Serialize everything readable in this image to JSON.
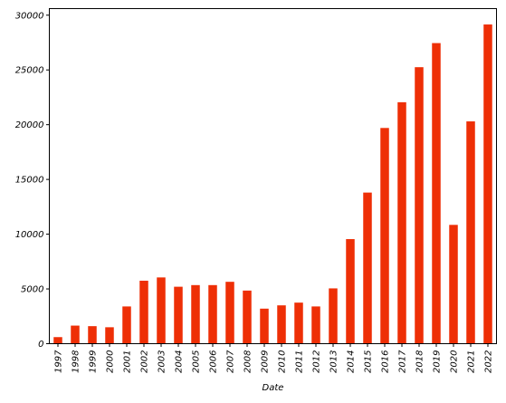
{
  "chart_data": {
    "type": "bar",
    "title": "",
    "xlabel": "Date",
    "ylabel": "",
    "ylim": [
      0,
      30600
    ],
    "yticks": [
      0,
      5000,
      10000,
      15000,
      20000,
      25000,
      30000
    ],
    "grid": false,
    "bar_color": "#ee2f06",
    "categories": [
      "1997",
      "1998",
      "1999",
      "2000",
      "2001",
      "2002",
      "2003",
      "2004",
      "2005",
      "2006",
      "2007",
      "2008",
      "2009",
      "2010",
      "2011",
      "2012",
      "2013",
      "2014",
      "2015",
      "2016",
      "2017",
      "2018",
      "2019",
      "2020",
      "2021",
      "2022"
    ],
    "values": [
      600,
      1650,
      1600,
      1500,
      3400,
      5750,
      6050,
      5200,
      5350,
      5350,
      5650,
      4850,
      3200,
      3500,
      3750,
      3400,
      5050,
      9550,
      13800,
      19700,
      22050,
      25250,
      27450,
      10850,
      20300,
      29150
    ]
  }
}
